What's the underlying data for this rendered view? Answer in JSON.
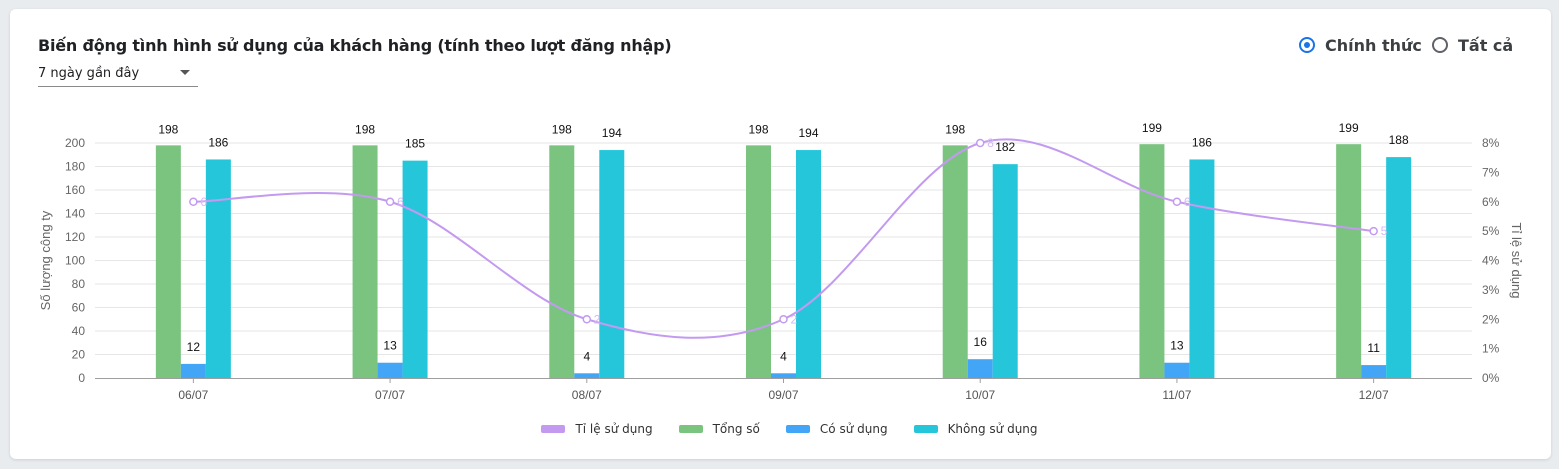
{
  "header": {
    "title": "Biến động tình hình sử dụng của khách hàng (tính theo lượt đăng nhập)",
    "period_select": "7 ngày gần đây"
  },
  "filters": {
    "options": [
      {
        "label": "Chính thức",
        "checked": true
      },
      {
        "label": "Tất cả",
        "checked": false
      }
    ]
  },
  "colors": {
    "total": "#7bc47f",
    "used": "#42a5f5",
    "unused": "#26c6da",
    "rate": "#c39af0",
    "accent": "#1a73e8"
  },
  "chart_data": {
    "type": "bar",
    "categories": [
      "06/07",
      "07/07",
      "08/07",
      "09/07",
      "10/07",
      "11/07",
      "12/07"
    ],
    "series": [
      {
        "name": "Tổng số",
        "values": [
          198,
          198,
          198,
          198,
          198,
          199,
          199
        ],
        "axis": "left"
      },
      {
        "name": "Có sử dụng",
        "values": [
          12,
          13,
          4,
          4,
          16,
          13,
          11
        ],
        "axis": "left"
      },
      {
        "name": "Không sử dụng",
        "values": [
          186,
          185,
          194,
          194,
          182,
          186,
          188
        ],
        "axis": "left"
      },
      {
        "name": "Tỉ lệ sử dụng",
        "type": "line",
        "values": [
          6,
          6,
          2,
          2,
          8,
          6,
          5
        ],
        "axis": "right"
      }
    ],
    "legend_order": [
      "Tỉ lệ sử dụng",
      "Tổng số",
      "Có sử dụng",
      "Không sử dụng"
    ],
    "ylabel": "Số lượng công ty",
    "y2label": "Tỉ lệ sử dụng",
    "ylim": [
      0,
      200
    ],
    "y2lim": [
      0,
      8
    ],
    "yticks": [
      "0",
      "20",
      "40",
      "60",
      "80",
      "100",
      "120",
      "140",
      "160",
      "180",
      "200"
    ],
    "y2ticks": [
      "0%",
      "1%",
      "2%",
      "3%",
      "4%",
      "5%",
      "6%",
      "7%",
      "8%"
    ],
    "grid": true,
    "legend_position": "bottom"
  }
}
